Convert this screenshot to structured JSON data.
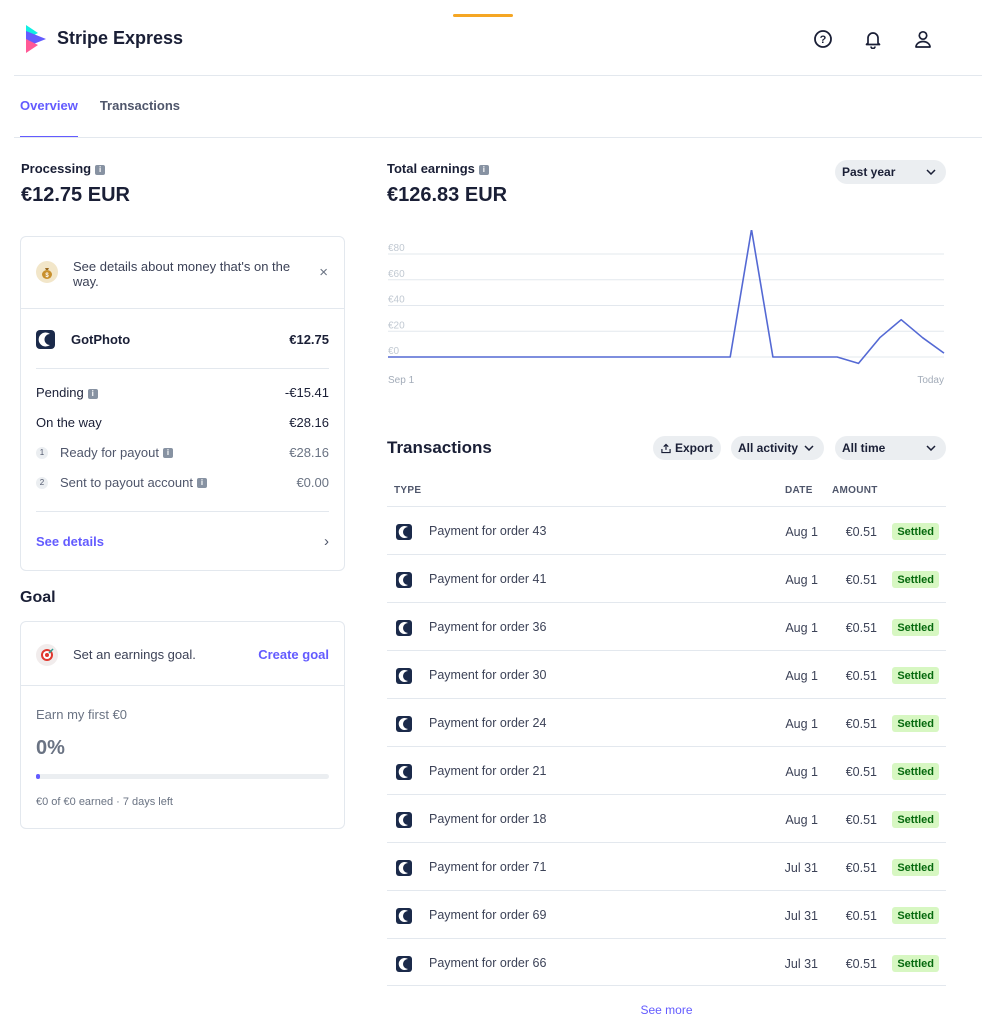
{
  "header": {
    "app_title": "Stripe Express",
    "icons": [
      "help-icon",
      "bell-icon",
      "user-icon"
    ]
  },
  "tabs": [
    {
      "label": "Overview",
      "active": true
    },
    {
      "label": "Transactions",
      "active": false
    }
  ],
  "processing": {
    "label": "Processing",
    "amount": "€12.75 EUR",
    "notice": "See details about money that's on the way.",
    "merchant": {
      "name": "GotPhoto",
      "amount": "€12.75"
    },
    "pending": {
      "label": "Pending",
      "amount": "-€15.41"
    },
    "on_the_way": {
      "label": "On the way",
      "amount": "€28.16"
    },
    "steps": [
      {
        "num": "1",
        "label": "Ready for payout",
        "amount": "€28.16"
      },
      {
        "num": "2",
        "label": "Sent to payout account",
        "amount": "€0.00"
      }
    ],
    "see_details": "See details"
  },
  "goal": {
    "title": "Goal",
    "prompt": "Set an earnings goal.",
    "create_label": "Create goal",
    "name": "Earn my first €0",
    "percent": "0%",
    "progress_fraction": 0.0,
    "footer": "€0 of €0 earned · 7 days left"
  },
  "earnings": {
    "label": "Total earnings",
    "amount": "€126.83 EUR",
    "range_select": "Past year"
  },
  "chart_data": {
    "type": "line",
    "y_ticks": [
      "€80",
      "€60",
      "€40",
      "€20",
      "€0"
    ],
    "ylim": [
      0,
      80
    ],
    "x_labels": [
      "Sep 1",
      "Today"
    ],
    "series": [
      {
        "values": [
          0,
          0,
          0,
          0,
          0,
          0,
          0,
          0,
          0,
          0,
          0,
          0,
          0,
          0,
          0,
          0,
          0,
          99,
          0,
          0,
          0,
          0,
          -5,
          15,
          29,
          15,
          3
        ]
      }
    ],
    "color": "#5469d4",
    "grid": true
  },
  "transactions": {
    "title": "Transactions",
    "export_label": "Export",
    "activity_select": "All activity",
    "time_select": "All time",
    "columns": {
      "type": "TYPE",
      "date": "DATE",
      "amount": "AMOUNT"
    },
    "rows": [
      {
        "desc": "Payment for order 43",
        "date": "Aug 1",
        "amount": "€0.51",
        "status": "Settled"
      },
      {
        "desc": "Payment for order 41",
        "date": "Aug 1",
        "amount": "€0.51",
        "status": "Settled"
      },
      {
        "desc": "Payment for order 36",
        "date": "Aug 1",
        "amount": "€0.51",
        "status": "Settled"
      },
      {
        "desc": "Payment for order 30",
        "date": "Aug 1",
        "amount": "€0.51",
        "status": "Settled"
      },
      {
        "desc": "Payment for order 24",
        "date": "Aug 1",
        "amount": "€0.51",
        "status": "Settled"
      },
      {
        "desc": "Payment for order 21",
        "date": "Aug 1",
        "amount": "€0.51",
        "status": "Settled"
      },
      {
        "desc": "Payment for order 18",
        "date": "Aug 1",
        "amount": "€0.51",
        "status": "Settled"
      },
      {
        "desc": "Payment for order 71",
        "date": "Jul 31",
        "amount": "€0.51",
        "status": "Settled"
      },
      {
        "desc": "Payment for order 69",
        "date": "Jul 31",
        "amount": "€0.51",
        "status": "Settled"
      },
      {
        "desc": "Payment for order 66",
        "date": "Jul 31",
        "amount": "€0.51",
        "status": "Settled"
      }
    ],
    "see_more": "See more"
  },
  "colors": {
    "accent": "#635bff",
    "settled_bg": "#d7f7c2",
    "settled_text": "#05690d",
    "chart_line": "#5469d4"
  }
}
